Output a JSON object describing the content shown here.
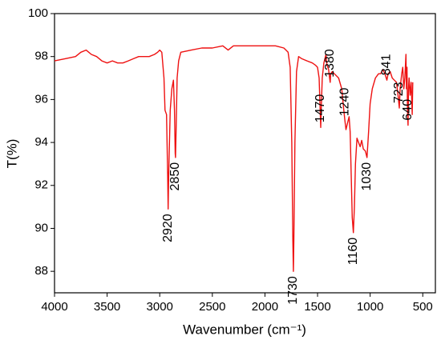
{
  "chart_data": {
    "type": "line",
    "x_label": "Wavenumber (cm⁻¹)",
    "y_label": "T(%)",
    "xlim": [
      4000,
      380
    ],
    "ylim": [
      87,
      100
    ],
    "xticks": [
      4000,
      3500,
      3000,
      2500,
      2000,
      1500,
      1000,
      500
    ],
    "yticks": [
      88,
      90,
      92,
      94,
      96,
      98,
      100
    ],
    "x": [
      4000,
      3900,
      3800,
      3750,
      3700,
      3650,
      3600,
      3550,
      3500,
      3450,
      3400,
      3350,
      3300,
      3250,
      3200,
      3150,
      3100,
      3050,
      3020,
      3000,
      2980,
      2960,
      2950,
      2935,
      2925,
      2920,
      2915,
      2900,
      2885,
      2870,
      2860,
      2853,
      2850,
      2845,
      2835,
      2820,
      2800,
      2700,
      2600,
      2500,
      2400,
      2350,
      2300,
      2200,
      2100,
      2000,
      1900,
      1820,
      1780,
      1760,
      1745,
      1735,
      1730,
      1725,
      1715,
      1700,
      1680,
      1650,
      1600,
      1550,
      1520,
      1500,
      1485,
      1475,
      1470,
      1465,
      1455,
      1440,
      1420,
      1410,
      1395,
      1385,
      1380,
      1375,
      1360,
      1340,
      1300,
      1270,
      1250,
      1240,
      1230,
      1215,
      1200,
      1190,
      1180,
      1170,
      1160,
      1150,
      1140,
      1125,
      1110,
      1095,
      1080,
      1065,
      1045,
      1030,
      1015,
      1000,
      980,
      950,
      920,
      900,
      880,
      860,
      841,
      830,
      810,
      790,
      770,
      750,
      735,
      723,
      715,
      700,
      690,
      680,
      670,
      660,
      655,
      650,
      645,
      640,
      635,
      630,
      620,
      610,
      600,
      595
    ],
    "series": [
      {
        "color": "#ee1111",
        "values": [
          97.8,
          97.9,
          98.0,
          98.2,
          98.3,
          98.1,
          98.0,
          97.8,
          97.7,
          97.8,
          97.7,
          97.7,
          97.8,
          97.9,
          98.0,
          98.0,
          98.0,
          98.1,
          98.2,
          98.3,
          98.2,
          97.0,
          95.5,
          95.3,
          92.5,
          90.9,
          92.5,
          95.5,
          96.5,
          96.9,
          95.5,
          93.5,
          93.3,
          94.5,
          97.0,
          97.8,
          98.2,
          98.3,
          98.4,
          98.4,
          98.5,
          98.3,
          98.5,
          98.5,
          98.5,
          98.5,
          98.5,
          98.4,
          98.2,
          97.5,
          94.0,
          89.5,
          88.0,
          89.5,
          94.0,
          97.3,
          98.0,
          97.9,
          97.8,
          97.7,
          97.6,
          97.5,
          97.0,
          95.5,
          94.7,
          95.5,
          97.0,
          97.7,
          98.1,
          97.6,
          97.4,
          97.0,
          96.8,
          97.2,
          97.3,
          97.2,
          97.0,
          96.5,
          95.5,
          95.0,
          94.6,
          94.9,
          95.2,
          94.5,
          92.5,
          90.5,
          89.8,
          91.0,
          93.0,
          94.2,
          94.0,
          93.8,
          94.1,
          93.7,
          93.6,
          93.3,
          94.5,
          95.8,
          96.5,
          97.0,
          97.2,
          97.2,
          97.4,
          97.2,
          96.9,
          97.2,
          97.3,
          97.0,
          96.9,
          96.8,
          96.2,
          95.6,
          96.5,
          97.2,
          97.5,
          96.5,
          97.0,
          98.1,
          96.5,
          97.5,
          95.5,
          94.8,
          96.5,
          97.0,
          96.2,
          96.8,
          95.3,
          96.8
        ]
      }
    ],
    "annotations": [
      2920,
      2850,
      1730,
      1470,
      1380,
      1240,
      1160,
      1030,
      841,
      723,
      640
    ]
  }
}
